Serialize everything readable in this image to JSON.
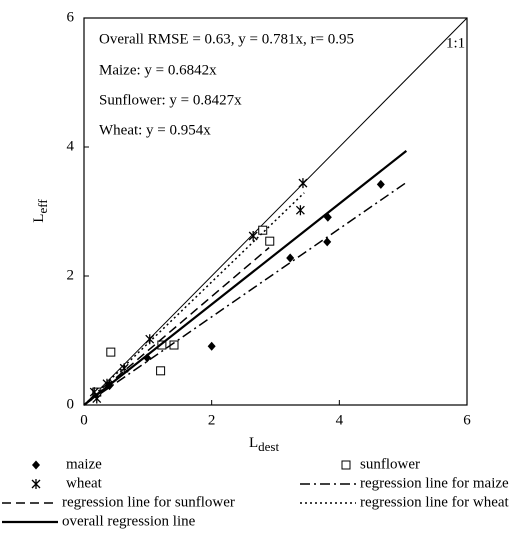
{
  "chart_data": {
    "type": "scatter",
    "xlabel": {
      "main": "L",
      "sub": "dest"
    },
    "ylabel": {
      "main": "L",
      "sub": "eff"
    },
    "xlim": [
      0,
      6
    ],
    "ylim": [
      0,
      6
    ],
    "xticks": [
      0,
      2,
      4,
      6
    ],
    "yticks": [
      0,
      2,
      4,
      6
    ],
    "annotations": [
      "Overall RMSE  = 0.63, y = 0.781x,  r= 0.95",
      "Maize: y = 0.6842x",
      "Sunflower: y = 0.8427x",
      "Wheat: y = 0.954x"
    ],
    "reference_line": {
      "label": "1:1",
      "x": [
        0,
        6
      ],
      "y": [
        0,
        6
      ]
    },
    "series": [
      {
        "name": "maize",
        "style": "diamond",
        "x": [
          0.2,
          0.4,
          0.99,
          2.0,
          3.23,
          3.82,
          3.81,
          4.65
        ],
        "y": [
          0.15,
          0.3,
          0.73,
          0.91,
          2.28,
          2.91,
          2.53,
          3.42
        ]
      },
      {
        "name": "sunflower",
        "style": "square",
        "x": [
          0.2,
          0.42,
          1.2,
          1.22,
          1.41,
          2.8,
          2.91
        ],
        "y": [
          0.2,
          0.82,
          0.53,
          0.93,
          0.93,
          2.71,
          2.54
        ]
      },
      {
        "name": "wheat",
        "style": "star",
        "x": [
          0.16,
          0.2,
          0.36,
          0.63,
          1.03,
          2.65,
          3.43,
          3.39
        ],
        "y": [
          0.2,
          0.1,
          0.33,
          0.57,
          1.02,
          2.62,
          3.44,
          3.02
        ]
      },
      {
        "name": "regression line for maize",
        "style": "dashdot",
        "x": [
          0,
          5.05
        ],
        "y": [
          0,
          3.45
        ]
      },
      {
        "name": "regression line for sunflower",
        "style": "dashed",
        "x": [
          0,
          2.9
        ],
        "y": [
          0,
          2.44
        ]
      },
      {
        "name": "regression line for wheat",
        "style": "dotted",
        "x": [
          0,
          3.45
        ],
        "y": [
          0,
          3.29
        ]
      },
      {
        "name": "overall regression line",
        "style": "solid",
        "x": [
          0,
          5.05
        ],
        "y": [
          0,
          3.94
        ]
      }
    ]
  }
}
